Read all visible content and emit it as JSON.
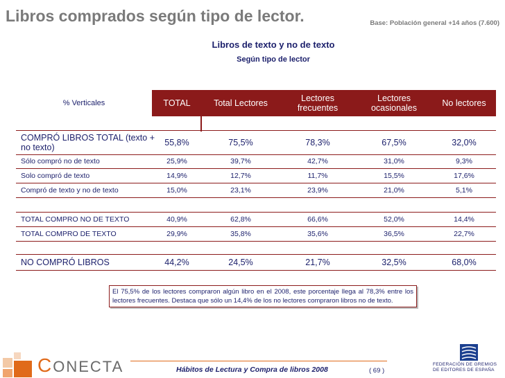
{
  "header": {
    "title": "Libros comprados según tipo de lector.",
    "base": "Base: Población general +14 años (7.600)",
    "subtitle": "Libros de texto y no de texto",
    "subtitle2": "Según tipo de lector"
  },
  "table": {
    "corner": "% Verticales",
    "columns": [
      "TOTAL",
      "Total Lectores",
      "Lectores frecuentes",
      "Lectores ocasionales",
      "No lectores"
    ],
    "rows": [
      {
        "label": "COMPRÓ LIBROS TOTAL (texto + no texto)",
        "values": [
          "55,8%",
          "75,5%",
          "78,3%",
          "67,5%",
          "32,0%"
        ]
      },
      {
        "label": "Sólo compró no de texto",
        "values": [
          "25,9%",
          "39,7%",
          "42,7%",
          "31,0%",
          "9,3%"
        ]
      },
      {
        "label": "Solo compró de texto",
        "values": [
          "14,9%",
          "12,7%",
          "11,7%",
          "15,5%",
          "17,6%"
        ]
      },
      {
        "label": "Compró de texto y no de texto",
        "values": [
          "15,0%",
          "23,1%",
          "23,9%",
          "21,0%",
          "5,1%"
        ]
      },
      {
        "label": "TOTAL COMPRO NO DE TEXTO",
        "values": [
          "40,9%",
          "62,8%",
          "66,6%",
          "52,0%",
          "14,4%"
        ]
      },
      {
        "label": "TOTAL COMPRO DE TEXTO",
        "values": [
          "29,9%",
          "35,8%",
          "35,6%",
          "36,5%",
          "22,7%"
        ]
      },
      {
        "label": "NO COMPRÓ LIBROS",
        "values": [
          "44,2%",
          "24,5%",
          "21,7%",
          "32,5%",
          "68,0%"
        ]
      }
    ]
  },
  "note": "El 75,5% de los lectores compraron algún libro en el 2008, este porcentaje llega al 78,3% entre los lectores frecuentes. Destaca que sólo un 14,4% de los no lectores compraron libros no de texto.",
  "footer": {
    "logo_c": "C",
    "logo_rest": "ONECTA",
    "study": "Hábitos de Lectura y Compra de libros 2008",
    "page": "( 69 )",
    "federation_lines": [
      "FEDERACIÓN DE GREMIOS",
      "DE EDITORES DE ESPAÑA"
    ]
  },
  "colors": {
    "accent": "#8b1a1a",
    "text": "#1b1f6b",
    "logo": "#e06a1a"
  }
}
